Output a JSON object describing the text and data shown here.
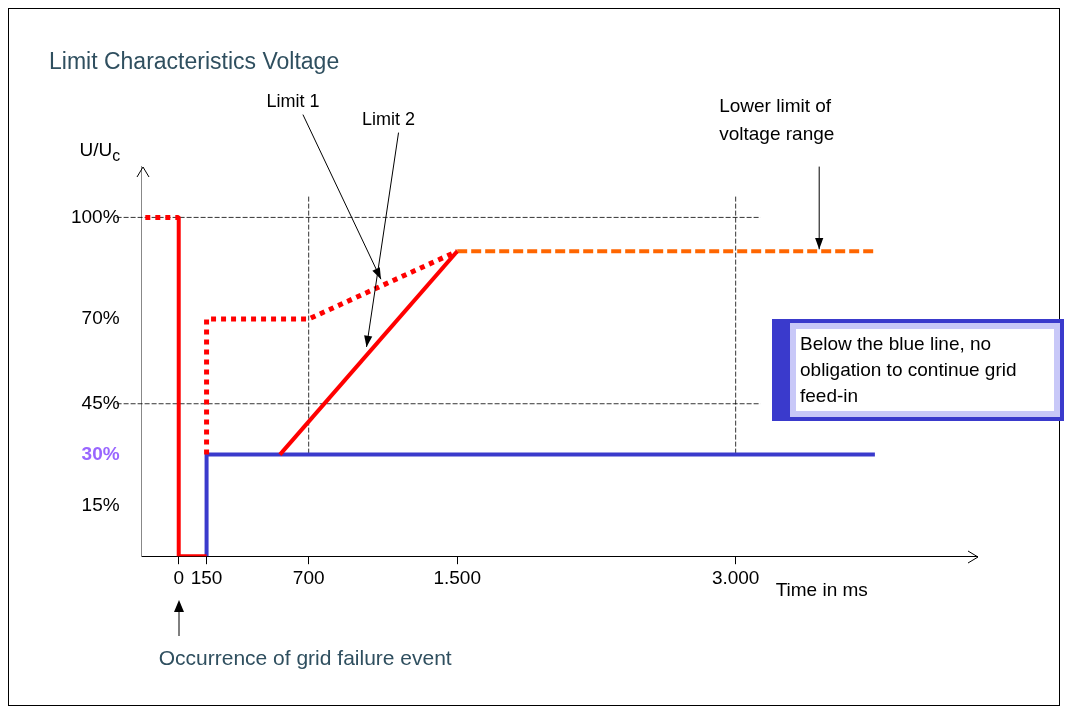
{
  "chart_data": {
    "type": "line",
    "title": "Limit Characteristics Voltage",
    "xlabel": "Time in ms",
    "ylabel": "U/U$_{c}$",
    "xlim": [
      -200,
      4300
    ],
    "ylim": [
      0,
      115
    ],
    "xticks": [
      0,
      150,
      700,
      {
        "value": 1500,
        "label": "1.500"
      },
      {
        "value": 3000,
        "label": "3.000"
      }
    ],
    "yticks": [
      {
        "value": 15,
        "label": "15%"
      },
      {
        "value": 30,
        "label": "30%"
      },
      {
        "value": 45,
        "label": "45%"
      },
      {
        "value": 70,
        "label": "70%"
      },
      {
        "value": 100,
        "label": "100%"
      }
    ],
    "grid": false,
    "legend": false,
    "marker": "none",
    "series": [
      {
        "color": "#ff0000",
        "line_style": "dotted",
        "x": [
          -180,
          0
        ],
        "values": [
          100,
          100
        ]
      },
      {
        "color": "#ff0000",
        "line_style": "solid",
        "x": [
          0,
          0,
          150
        ],
        "values": [
          100,
          0,
          0
        ]
      },
      {
        "name": "Limit 1",
        "color": "#ff0000",
        "line_style": "dotted",
        "x": [
          150,
          150,
          700,
          1500
        ],
        "values": [
          30,
          70,
          70,
          90
        ]
      },
      {
        "name": "Limit 2",
        "color": "#ff0000",
        "line_style": "solid",
        "x": [
          545,
          1500
        ],
        "values": [
          30,
          90
        ]
      },
      {
        "color": "#3a3acc",
        "line_style": "solid",
        "x": [
          150,
          150,
          3750
        ],
        "values": [
          0,
          30,
          30
        ]
      },
      {
        "color": "#ff6600",
        "line_style": "dashed",
        "x": [
          1500,
          3750
        ],
        "values": [
          90,
          90
        ]
      }
    ],
    "ref_lines": [
      {
        "axis": "y",
        "value": 100,
        "line_style": "dashed"
      },
      {
        "axis": "y",
        "value": 45,
        "line_style": "dashed"
      },
      {
        "axis": "x",
        "value": 700,
        "line_style": "dashed"
      },
      {
        "axis": "x",
        "value": 3000,
        "line_style": "dashed"
      }
    ],
    "annotations": [
      {
        "text": "Lower limit of voltage range",
        "x": 3450,
        "y": 90
      },
      "Below the blue line, no obligation to continue grid feed-in",
      "Occurrence of grid failure event"
    ]
  }
}
